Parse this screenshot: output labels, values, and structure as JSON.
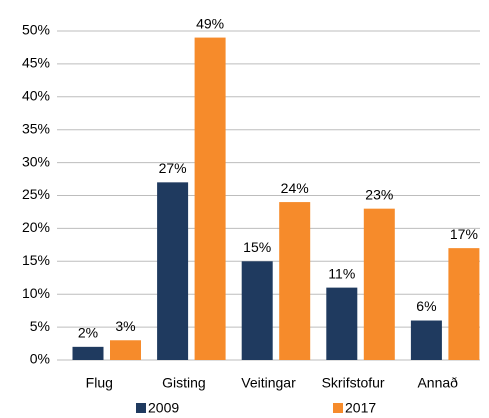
{
  "chart_data": {
    "type": "bar",
    "categories": [
      "Flug",
      "Gisting",
      "Veitingar",
      "Skrifstofur",
      "Annað"
    ],
    "series": [
      {
        "name": "2009",
        "color": "#1f3a5f",
        "values": [
          2,
          27,
          15,
          11,
          6
        ],
        "value_labels": [
          "2%",
          "27%",
          "15%",
          "11%",
          "6%"
        ]
      },
      {
        "name": "2017",
        "color": "#f68b2b",
        "values": [
          3,
          49,
          24,
          23,
          17
        ],
        "value_labels": [
          "3%",
          "49%",
          "24%",
          "23%",
          "17%"
        ]
      }
    ],
    "ylim": [
      0,
      50
    ],
    "yticks": [
      {
        "value": 0,
        "label": "0%"
      },
      {
        "value": 5,
        "label": "5%"
      },
      {
        "value": 10,
        "label": "10%"
      },
      {
        "value": 15,
        "label": "15%"
      },
      {
        "value": 20,
        "label": "20%"
      },
      {
        "value": 25,
        "label": "25%"
      },
      {
        "value": 30,
        "label": "30%"
      },
      {
        "value": 35,
        "label": "35%"
      },
      {
        "value": 40,
        "label": "40%"
      },
      {
        "value": 45,
        "label": "45%"
      },
      {
        "value": 50,
        "label": "50%"
      }
    ],
    "grid": true,
    "legend": "bottom"
  }
}
